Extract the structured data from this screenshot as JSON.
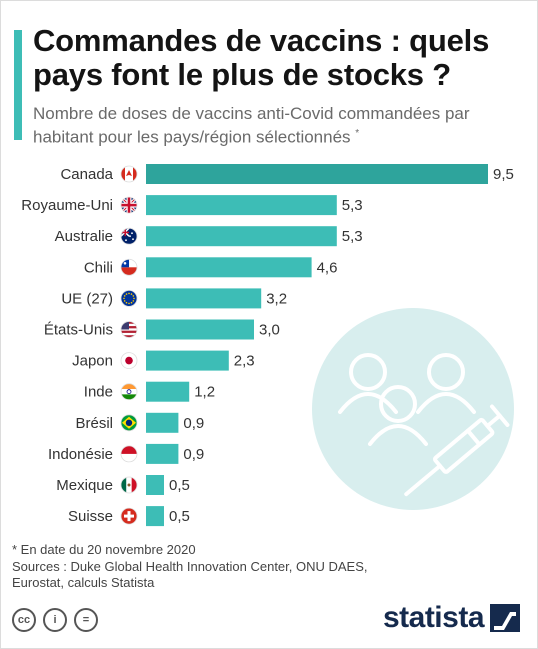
{
  "title": "Commandes de vaccins : quels pays font le plus de stocks ?",
  "subtitle": "Nombre de doses de vaccins anti-Covid commandées par habitant pour les pays/région sélectionnés",
  "subtitle_mark": "*",
  "colors": {
    "accent": "#3dbdb6",
    "bar": "#3dbdb6",
    "bar_highlight": "#2ea49c",
    "circle": "#d8eeee",
    "brand": "#152a4d"
  },
  "chart_data": {
    "type": "bar",
    "orientation": "horizontal",
    "categories": [
      "Canada",
      "Royaume-Uni",
      "Australie",
      "Chili",
      "UE (27)",
      "États-Unis",
      "Japon",
      "Inde",
      "Brésil",
      "Indonésie",
      "Mexique",
      "Suisse"
    ],
    "values": [
      9.5,
      5.3,
      5.3,
      4.6,
      3.2,
      3.0,
      2.3,
      1.2,
      0.9,
      0.9,
      0.5,
      0.5
    ],
    "value_labels": [
      "9,5",
      "5,3",
      "5,3",
      "4,6",
      "3,2",
      "3,0",
      "2,3",
      "1,2",
      "0,9",
      "0,9",
      "0,5",
      "0,5"
    ],
    "flags": [
      "canada-flag",
      "uk-flag",
      "australia-flag",
      "chile-flag",
      "eu-flag",
      "usa-flag",
      "japan-flag",
      "india-flag",
      "brazil-flag",
      "indonesia-flag",
      "mexico-flag",
      "switzerland-flag"
    ],
    "highlight_index": 0,
    "xlim": [
      0,
      9.5
    ],
    "grid": false,
    "legend": "none"
  },
  "footnote": {
    "date_note": "* En date du 20 novembre 2020",
    "sources_line1": "Sources : Duke Global Health Innovation Center, ONU DAES,",
    "sources_line2": "Eurostat, calculs Statista"
  },
  "license": {
    "cc": "cc",
    "by": "i",
    "nd": "="
  },
  "brand": {
    "name": "statista"
  }
}
